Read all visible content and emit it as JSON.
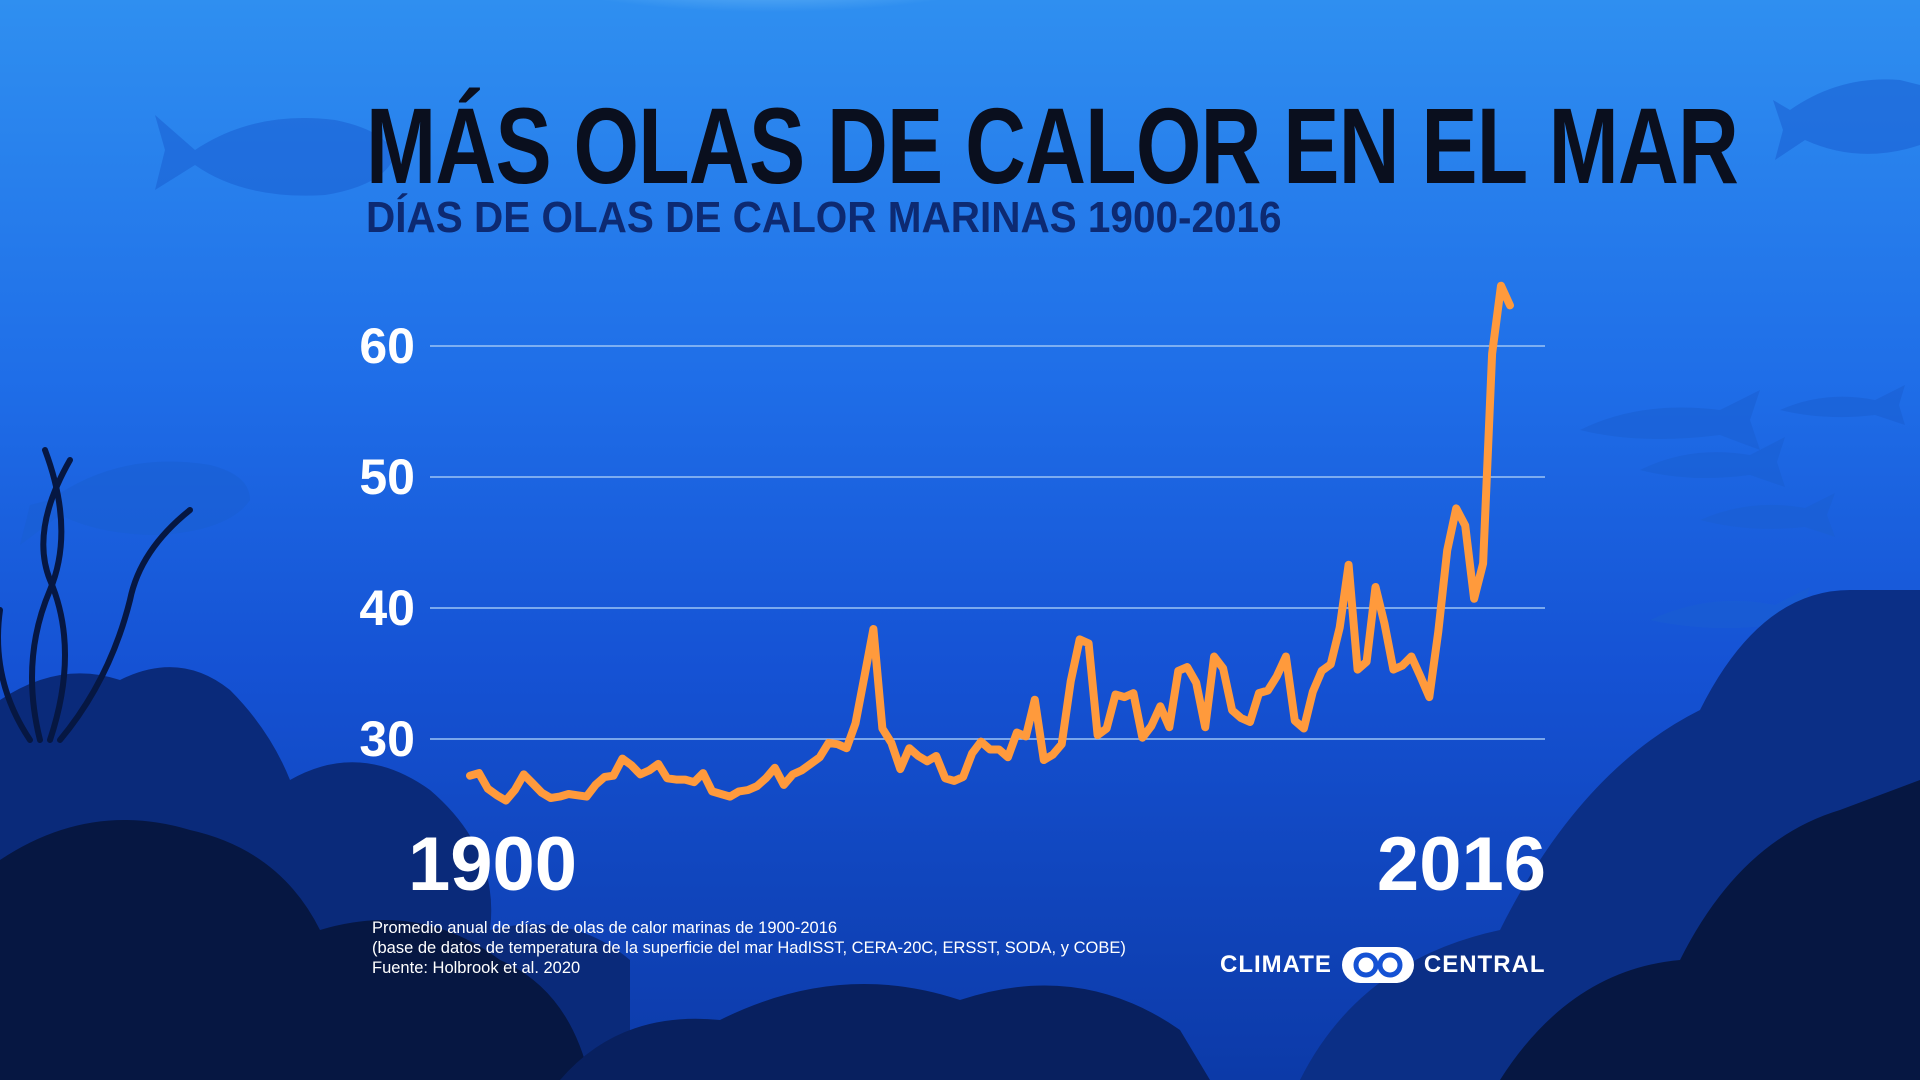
{
  "header": {
    "title": "MÁS OLAS DE CALOR EN EL MAR",
    "subtitle": "DÍAS DE OLAS DE CALOR MARINAS 1900-2016"
  },
  "footer": {
    "source_lines": [
      "Promedio anual de días de olas de calor marinas de 1900-2016",
      "(base de datos de temperatura de la superficie del mar HadISST, CERA-20C, ERSST, SODA, y COBE)",
      "Fuente: Holbrook et al. 2020"
    ],
    "logo_left": "CLIMATE",
    "logo_right": "CENTRAL"
  },
  "colors": {
    "line": "#ff9a3c",
    "title": "#0a0f1e",
    "subtitle": "#0d2a72",
    "grid": "#9cc4f5",
    "text": "#ffffff"
  },
  "chart_data": {
    "type": "line",
    "title": "MÁS OLAS DE CALOR EN EL MAR",
    "subtitle": "DÍAS DE OLAS DE CALOR MARINAS 1900-2016",
    "xlabel": "",
    "ylabel": "",
    "xlim": [
      1900,
      2016
    ],
    "ylim": [
      23,
      65
    ],
    "x_tick_labels": [
      "1900",
      "2016"
    ],
    "y_ticks": [
      30,
      40,
      50,
      60
    ],
    "grid": true,
    "series": [
      {
        "values": [
          [
            1900,
            27.2
          ],
          [
            1901,
            27.4
          ],
          [
            1902,
            26.2
          ],
          [
            1903,
            25.7
          ],
          [
            1904,
            25.3
          ],
          [
            1905,
            26.1
          ],
          [
            1906,
            27.3
          ],
          [
            1907,
            26.6
          ],
          [
            1908,
            25.9
          ],
          [
            1909,
            25.5
          ],
          [
            1910,
            25.6
          ],
          [
            1911,
            25.8
          ],
          [
            1912,
            25.7
          ],
          [
            1913,
            25.6
          ],
          [
            1914,
            26.5
          ],
          [
            1915,
            27.1
          ],
          [
            1916,
            27.2
          ],
          [
            1917,
            28.5
          ],
          [
            1918,
            28.0
          ],
          [
            1919,
            27.3
          ],
          [
            1920,
            27.6
          ],
          [
            1921,
            28.1
          ],
          [
            1922,
            27.0
          ],
          [
            1923,
            26.9
          ],
          [
            1924,
            26.9
          ],
          [
            1925,
            26.7
          ],
          [
            1926,
            27.4
          ],
          [
            1927,
            26.0
          ],
          [
            1928,
            25.8
          ],
          [
            1929,
            25.6
          ],
          [
            1930,
            26.0
          ],
          [
            1931,
            26.1
          ],
          [
            1932,
            26.4
          ],
          [
            1933,
            27.0
          ],
          [
            1934,
            27.8
          ],
          [
            1935,
            26.5
          ],
          [
            1936,
            27.3
          ],
          [
            1937,
            27.6
          ],
          [
            1938,
            28.1
          ],
          [
            1939,
            28.6
          ],
          [
            1940,
            29.7
          ],
          [
            1941,
            29.6
          ],
          [
            1942,
            29.3
          ],
          [
            1943,
            31.2
          ],
          [
            1944,
            34.8
          ],
          [
            1945,
            38.4
          ],
          [
            1946,
            30.8
          ],
          [
            1947,
            29.7
          ],
          [
            1948,
            27.7
          ],
          [
            1949,
            29.3
          ],
          [
            1950,
            28.7
          ],
          [
            1951,
            28.3
          ],
          [
            1952,
            28.7
          ],
          [
            1953,
            27.0
          ],
          [
            1954,
            26.8
          ],
          [
            1955,
            27.1
          ],
          [
            1956,
            28.9
          ],
          [
            1957,
            29.8
          ],
          [
            1958,
            29.2
          ],
          [
            1959,
            29.2
          ],
          [
            1960,
            28.6
          ],
          [
            1961,
            30.5
          ],
          [
            1962,
            30.2
          ],
          [
            1963,
            33.0
          ],
          [
            1964,
            28.4
          ],
          [
            1965,
            28.8
          ],
          [
            1966,
            29.6
          ],
          [
            1967,
            34.4
          ],
          [
            1968,
            37.6
          ],
          [
            1969,
            37.3
          ],
          [
            1970,
            30.3
          ],
          [
            1971,
            30.8
          ],
          [
            1972,
            33.4
          ],
          [
            1973,
            33.2
          ],
          [
            1974,
            33.5
          ],
          [
            1975,
            30.1
          ],
          [
            1976,
            31.0
          ],
          [
            1977,
            32.5
          ],
          [
            1978,
            30.9
          ],
          [
            1979,
            35.2
          ],
          [
            1980,
            35.5
          ],
          [
            1981,
            34.3
          ],
          [
            1982,
            30.9
          ],
          [
            1983,
            36.3
          ],
          [
            1984,
            35.4
          ],
          [
            1985,
            32.2
          ],
          [
            1986,
            31.6
          ],
          [
            1987,
            31.3
          ],
          [
            1988,
            33.5
          ],
          [
            1989,
            33.7
          ],
          [
            1990,
            34.8
          ],
          [
            1991,
            36.3
          ],
          [
            1992,
            31.4
          ],
          [
            1993,
            30.8
          ],
          [
            1994,
            33.6
          ],
          [
            1995,
            35.2
          ],
          [
            1996,
            35.7
          ],
          [
            1997,
            38.5
          ],
          [
            1998,
            43.3
          ],
          [
            1999,
            35.3
          ],
          [
            2000,
            35.9
          ],
          [
            2001,
            41.6
          ],
          [
            2002,
            38.8
          ],
          [
            2003,
            35.3
          ],
          [
            2004,
            35.6
          ],
          [
            2005,
            36.3
          ],
          [
            2006,
            34.8
          ],
          [
            2007,
            33.2
          ],
          [
            2008,
            38.2
          ],
          [
            2009,
            44.4
          ],
          [
            2010,
            47.6
          ],
          [
            2011,
            46.3
          ],
          [
            2012,
            40.7
          ],
          [
            2013,
            43.4
          ],
          [
            2014,
            59.4
          ],
          [
            2015,
            64.6
          ],
          [
            2016,
            63.1
          ]
        ]
      }
    ]
  }
}
